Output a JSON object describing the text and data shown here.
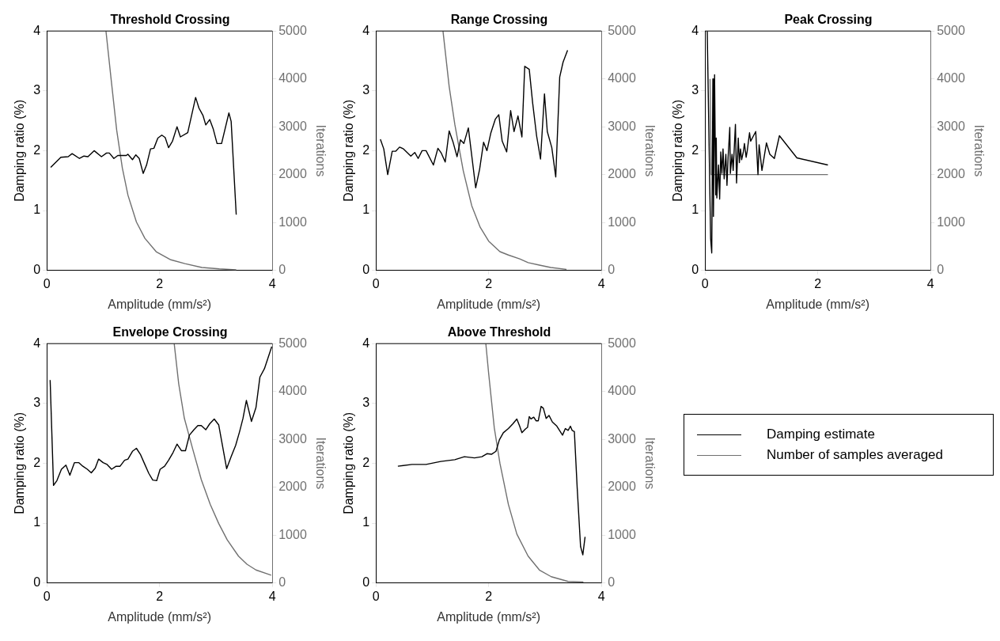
{
  "chart_data": [
    {
      "type": "line",
      "title": "Threshold Crossing",
      "xlabel": "Amplitude (mm/s²)",
      "ylabel": "Damping ratio (%)",
      "y2label": "Iterations",
      "xlim": [
        0,
        4
      ],
      "xticks": [
        0,
        2,
        4
      ],
      "ylim": [
        0,
        4
      ],
      "yticks": [
        0,
        1,
        2,
        3,
        4
      ],
      "y2lim": [
        0,
        5000
      ],
      "y2ticks": [
        0,
        1000,
        2000,
        3000,
        4000,
        5000
      ],
      "series": [
        {
          "color": "#000000",
          "x": [
            0.07,
            0.25,
            0.38,
            0.45,
            0.58,
            0.66,
            0.73,
            0.84,
            0.97,
            1.06,
            1.11,
            1.19,
            1.26,
            1.41,
            1.44,
            1.52,
            1.58,
            1.64,
            1.71,
            1.77,
            1.84,
            1.9,
            1.97,
            2.04,
            2.1,
            2.16,
            2.23,
            2.31,
            2.37,
            2.5,
            2.64,
            2.7,
            2.77,
            2.82,
            2.89,
            2.95,
            3.02,
            3.1,
            3.23,
            3.27,
            3.36
          ],
          "values": [
            1.72,
            1.89,
            1.9,
            1.95,
            1.87,
            1.91,
            1.9,
            2.0,
            1.9,
            1.96,
            1.96,
            1.87,
            1.92,
            1.92,
            1.94,
            1.85,
            1.93,
            1.87,
            1.62,
            1.76,
            2.03,
            2.04,
            2.21,
            2.26,
            2.22,
            2.05,
            2.16,
            2.4,
            2.23,
            2.3,
            2.89,
            2.71,
            2.59,
            2.43,
            2.52,
            2.37,
            2.12,
            2.12,
            2.63,
            2.49,
            0.93
          ]
        },
        {
          "color": "#707070",
          "axis": "y2",
          "x": [
            1.05,
            1.14,
            1.24,
            1.34,
            1.44,
            1.59,
            1.74,
            1.94,
            2.2,
            2.45,
            2.75,
            3.06,
            3.36
          ],
          "values": [
            5000,
            4010,
            2930,
            2140,
            1570,
            1010,
            670,
            390,
            220,
            140,
            60,
            30,
            10
          ]
        }
      ]
    },
    {
      "type": "line",
      "title": "Range Crossing",
      "xlabel": "Amplitude (mm/s²)",
      "ylabel": "Damping ratio (%)",
      "y2label": "Iterations",
      "xlim": [
        0,
        4
      ],
      "xticks": [
        0,
        2,
        4
      ],
      "ylim": [
        0,
        4
      ],
      "yticks": [
        0,
        1,
        2,
        3,
        4
      ],
      "y2lim": [
        0,
        5000
      ],
      "y2ticks": [
        0,
        1000,
        2000,
        3000,
        4000,
        5000
      ],
      "series": [
        {
          "color": "#000000",
          "x": [
            0.08,
            0.14,
            0.21,
            0.29,
            0.35,
            0.42,
            0.49,
            0.62,
            0.69,
            0.75,
            0.82,
            0.89,
            1.02,
            1.1,
            1.16,
            1.23,
            1.3,
            1.37,
            1.44,
            1.5,
            1.56,
            1.64,
            1.77,
            1.84,
            1.91,
            1.97,
            2.04,
            2.12,
            2.18,
            2.24,
            2.32,
            2.39,
            2.45,
            2.52,
            2.59,
            2.64,
            2.72,
            2.78,
            2.85,
            2.92,
            2.99,
            3.04,
            3.12,
            3.19,
            3.26,
            3.32,
            3.4
          ],
          "values": [
            2.19,
            2.03,
            1.6,
            1.99,
            1.99,
            2.06,
            2.03,
            1.91,
            1.97,
            1.87,
            2.0,
            2.0,
            1.76,
            2.04,
            1.96,
            1.81,
            2.33,
            2.14,
            1.9,
            2.18,
            2.12,
            2.38,
            1.38,
            1.69,
            2.14,
            2.0,
            2.3,
            2.53,
            2.6,
            2.16,
            1.98,
            2.67,
            2.32,
            2.58,
            2.23,
            3.41,
            3.36,
            2.8,
            2.25,
            1.86,
            2.95,
            2.32,
            2.05,
            1.56,
            3.23,
            3.48,
            3.68
          ]
        },
        {
          "color": "#707070",
          "axis": "y2",
          "x": [
            1.19,
            1.3,
            1.4,
            1.55,
            1.7,
            1.85,
            2.0,
            2.2,
            2.35,
            2.55,
            2.7,
            2.9,
            3.1,
            3.38
          ],
          "values": [
            5000,
            3840,
            3050,
            2080,
            1350,
            900,
            610,
            390,
            320,
            240,
            160,
            110,
            60,
            20
          ]
        }
      ]
    },
    {
      "type": "line",
      "title": "Peak Crossing",
      "xlabel": "Amplitude (mm/s²)",
      "ylabel": "Damping ratio (%)",
      "y2label": "Iterations",
      "xlim": [
        0,
        4
      ],
      "xticks": [
        0,
        2,
        4
      ],
      "ylim": [
        0,
        4
      ],
      "yticks": [
        0,
        1,
        2,
        3,
        4
      ],
      "y2lim": [
        0,
        5000
      ],
      "y2ticks": [
        0,
        1000,
        2000,
        3000,
        4000,
        5000
      ],
      "series": [
        {
          "color": "#000000",
          "x": [
            0.04,
            0.1,
            0.12,
            0.14,
            0.15,
            0.17,
            0.19,
            0.2,
            0.21,
            0.24,
            0.26,
            0.28,
            0.3,
            0.32,
            0.34,
            0.37,
            0.39,
            0.41,
            0.44,
            0.45,
            0.48,
            0.5,
            0.54,
            0.56,
            0.59,
            0.61,
            0.63,
            0.65,
            0.68,
            0.7,
            0.73,
            0.75,
            0.79,
            0.81,
            0.85,
            0.9,
            0.94,
            0.96,
            1.01,
            1.09,
            1.15,
            1.23,
            1.32,
            1.63,
            2.18
          ],
          "values": [
            4.0,
            0.53,
            0.29,
            3.2,
            0.9,
            3.27,
            1.26,
            2.21,
            1.21,
            1.76,
            1.19,
            1.98,
            1.62,
            2.03,
            1.53,
            1.94,
            1.42,
            1.89,
            2.39,
            1.62,
            1.94,
            1.67,
            2.44,
            1.46,
            2.21,
            1.8,
            2.03,
            1.85,
            1.98,
            2.12,
            1.89,
            2.0,
            2.3,
            2.16,
            2.23,
            2.32,
            1.6,
            2.1,
            1.67,
            2.13,
            1.94,
            1.87,
            2.25,
            1.88,
            1.76
          ]
        },
        {
          "color": "#707070",
          "axis": "y2",
          "x": [
            0.09,
            0.11,
            0.13,
            2.18
          ],
          "values": [
            4000,
            2000,
            2000,
            2000
          ]
        }
      ]
    },
    {
      "type": "line",
      "title": "Envelope Crossing",
      "xlabel": "Amplitude (mm/s²)",
      "ylabel": "Damping ratio (%)",
      "y2label": "Iterations",
      "xlim": [
        0,
        4
      ],
      "xticks": [
        0,
        2,
        4
      ],
      "ylim": [
        0,
        4
      ],
      "yticks": [
        0,
        1,
        2,
        3,
        4
      ],
      "y2lim": [
        0,
        5000
      ],
      "y2ticks": [
        0,
        1000,
        2000,
        3000,
        4000,
        5000
      ],
      "series": [
        {
          "color": "#000000",
          "x": [
            0.06,
            0.12,
            0.18,
            0.26,
            0.34,
            0.41,
            0.49,
            0.57,
            0.64,
            0.72,
            0.79,
            0.86,
            0.92,
            1.0,
            1.07,
            1.15,
            1.23,
            1.3,
            1.38,
            1.44,
            1.52,
            1.59,
            1.66,
            1.73,
            1.81,
            1.88,
            1.95,
            2.01,
            2.09,
            2.16,
            2.24,
            2.31,
            2.39,
            2.46,
            2.53,
            2.61,
            2.68,
            2.74,
            2.82,
            2.89,
            2.97,
            3.05,
            3.19,
            3.27,
            3.35,
            3.42,
            3.48,
            3.54,
            3.63,
            3.71,
            3.78,
            3.86,
            3.99
          ],
          "values": [
            3.39,
            1.63,
            1.71,
            1.9,
            1.97,
            1.8,
            2.01,
            2.01,
            1.95,
            1.9,
            1.84,
            1.92,
            2.07,
            2.01,
            1.98,
            1.9,
            1.95,
            1.95,
            2.05,
            2.07,
            2.2,
            2.25,
            2.15,
            2.0,
            1.83,
            1.72,
            1.71,
            1.9,
            1.95,
            2.05,
            2.18,
            2.32,
            2.21,
            2.21,
            2.47,
            2.56,
            2.63,
            2.63,
            2.56,
            2.66,
            2.74,
            2.64,
            1.91,
            2.11,
            2.3,
            2.53,
            2.75,
            3.05,
            2.7,
            2.93,
            3.44,
            3.58,
            3.95
          ]
        },
        {
          "color": "#707070",
          "axis": "y2",
          "x": [
            2.26,
            2.34,
            2.44,
            2.59,
            2.74,
            2.9,
            3.05,
            3.2,
            3.4,
            3.55,
            3.71,
            3.91,
            3.98
          ],
          "values": [
            5000,
            4160,
            3440,
            2790,
            2160,
            1640,
            1240,
            900,
            560,
            390,
            270,
            190,
            160
          ]
        }
      ]
    },
    {
      "type": "line",
      "title": "Above Threshold",
      "xlabel": "Amplitude (mm/s²)",
      "ylabel": "Damping ratio (%)",
      "y2label": "Iterations",
      "xlim": [
        0,
        4
      ],
      "xticks": [
        0,
        2,
        4
      ],
      "ylim": [
        0,
        4
      ],
      "yticks": [
        0,
        1,
        2,
        3,
        4
      ],
      "y2lim": [
        0,
        5000
      ],
      "y2ticks": [
        0,
        1000,
        2000,
        3000,
        4000,
        5000
      ],
      "legend": "right",
      "series": [
        {
          "name": "Damping estimate",
          "color": "#000000",
          "x": [
            0.39,
            0.64,
            0.89,
            1.15,
            1.4,
            1.57,
            1.75,
            1.88,
            1.97,
            2.05,
            2.13,
            2.19,
            2.26,
            2.35,
            2.43,
            2.5,
            2.55,
            2.59,
            2.65,
            2.69,
            2.72,
            2.75,
            2.8,
            2.84,
            2.88,
            2.93,
            2.97,
            3.02,
            3.07,
            3.13,
            3.21,
            3.31,
            3.36,
            3.41,
            3.45,
            3.48,
            3.52,
            3.57,
            3.63,
            3.67,
            3.71
          ],
          "values": [
            1.95,
            1.98,
            1.98,
            2.03,
            2.06,
            2.11,
            2.09,
            2.11,
            2.16,
            2.15,
            2.2,
            2.39,
            2.51,
            2.58,
            2.66,
            2.74,
            2.62,
            2.51,
            2.57,
            2.6,
            2.78,
            2.74,
            2.77,
            2.71,
            2.71,
            2.95,
            2.92,
            2.75,
            2.8,
            2.69,
            2.62,
            2.47,
            2.58,
            2.55,
            2.62,
            2.55,
            2.53,
            1.59,
            0.61,
            0.47,
            0.77
          ]
        },
        {
          "name": "Number of samples averaged",
          "color": "#707070",
          "axis": "y2",
          "x": [
            1.95,
            2.0,
            2.1,
            2.2,
            2.35,
            2.5,
            2.7,
            2.9,
            3.11,
            3.41,
            3.68
          ],
          "values": [
            5000,
            4380,
            3240,
            2500,
            1640,
            1020,
            560,
            270,
            130,
            30,
            20
          ]
        }
      ]
    }
  ]
}
